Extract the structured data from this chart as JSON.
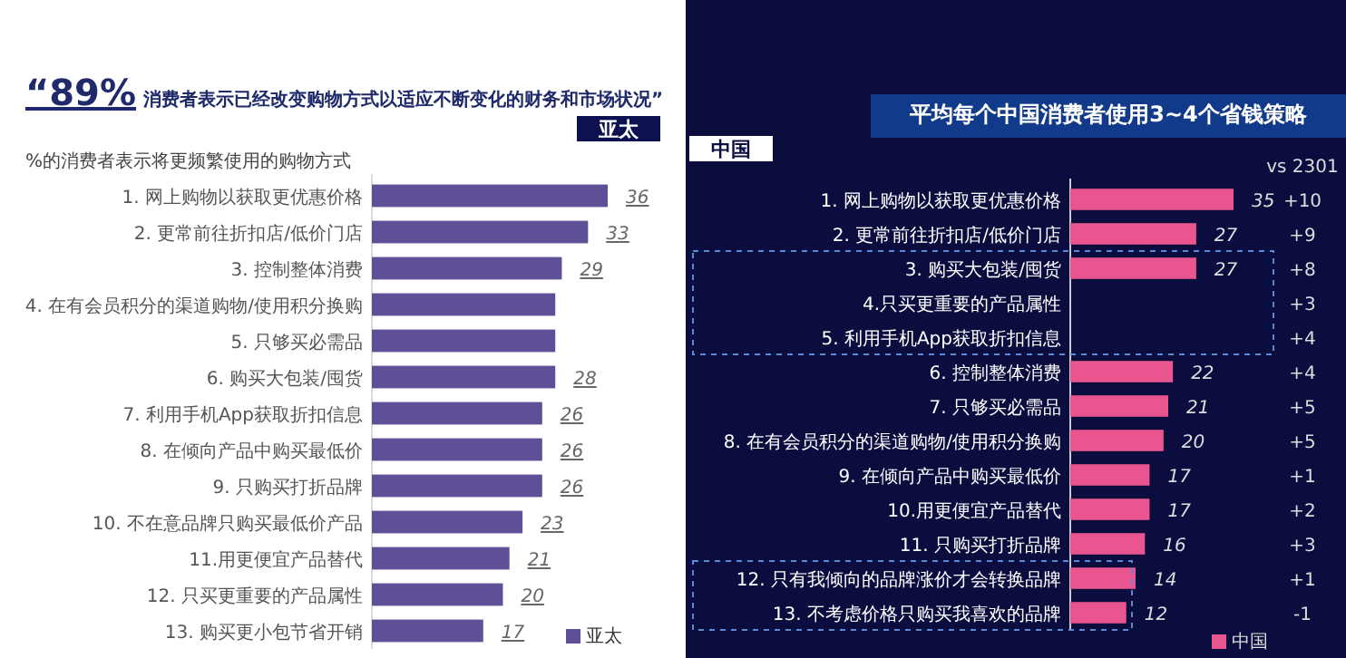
{
  "chart_data": [
    {
      "type": "bar",
      "orientation": "horizontal",
      "title": "“89% 消费者表示已经改变购物方式以适应不断变化的财务和市场状况”",
      "categories": [
        "1. 网上购物以获取更优惠价格",
        "2. 更常前往折扣店/低价门店",
        "3. 控制整体消费",
        "4. 在有会员积分的渠道购物/使用积分换购",
        "5. 只够买必需品",
        "6. 购买大包装/囤货",
        "7. 利用手机App获取折扣信息",
        "8. 在倾向产品中购买最低价",
        "9. 只购买打折品牌",
        "10. 不在意品牌只购买最低价产品",
        "11.用更便宜产品替代",
        "12. 只买更重要的产品属性",
        "13. 购买更小包节省开销"
      ],
      "series": [
        {
          "name": "亚太",
          "color": "#5e4f96",
          "values": [
            36,
            33,
            29,
            28,
            28,
            28,
            26,
            26,
            26,
            23,
            21,
            20,
            17
          ],
          "value_labels": [
            "36",
            "33",
            "29",
            null,
            null,
            "28",
            "26",
            "26",
            "26",
            "23",
            "21",
            "20",
            "17"
          ]
        }
      ],
      "annotations": [
        "亚太",
        "%的消费者表示将更频繁使用的购物方式"
      ],
      "legend": "bottom right"
    },
    {
      "type": "bar",
      "orientation": "horizontal",
      "title": "平均每个中国消费者使用3~4个省钱策略",
      "categories": [
        "1. 网上购物以获取更优惠价格",
        "2. 更常前往折扣店/低价门店",
        "3. 购买大包装/囤货",
        "4.只买更重要的产品属性",
        "5. 利用手机App获取折扣信息",
        "6. 控制整体消费",
        "7. 只够买必需品",
        "8. 在有会员积分的渠道购物/使用积分换购",
        "9. 在倾向产品中购买最低价",
        "10.用更便宜产品替代",
        "11. 只购买打折品牌",
        "12. 只有我倾向的品牌涨价才会转换品牌",
        "13. 不考虑价格只购买我喜欢的品牌"
      ],
      "series": [
        {
          "name": "中国",
          "color": "#e8558f",
          "values": [
            35,
            27,
            27,
            null,
            null,
            22,
            21,
            20,
            17,
            17,
            16,
            14,
            12
          ]
        }
      ],
      "data_labels": true,
      "annotations": [
        "中国",
        "vs 2301",
        "+10",
        "+9",
        "+8",
        "+3",
        "+4",
        "+4",
        "+5",
        "+5",
        "+1",
        "+2",
        "+3",
        "+1",
        "-1"
      ],
      "legend": "bottom right"
    }
  ]
}
